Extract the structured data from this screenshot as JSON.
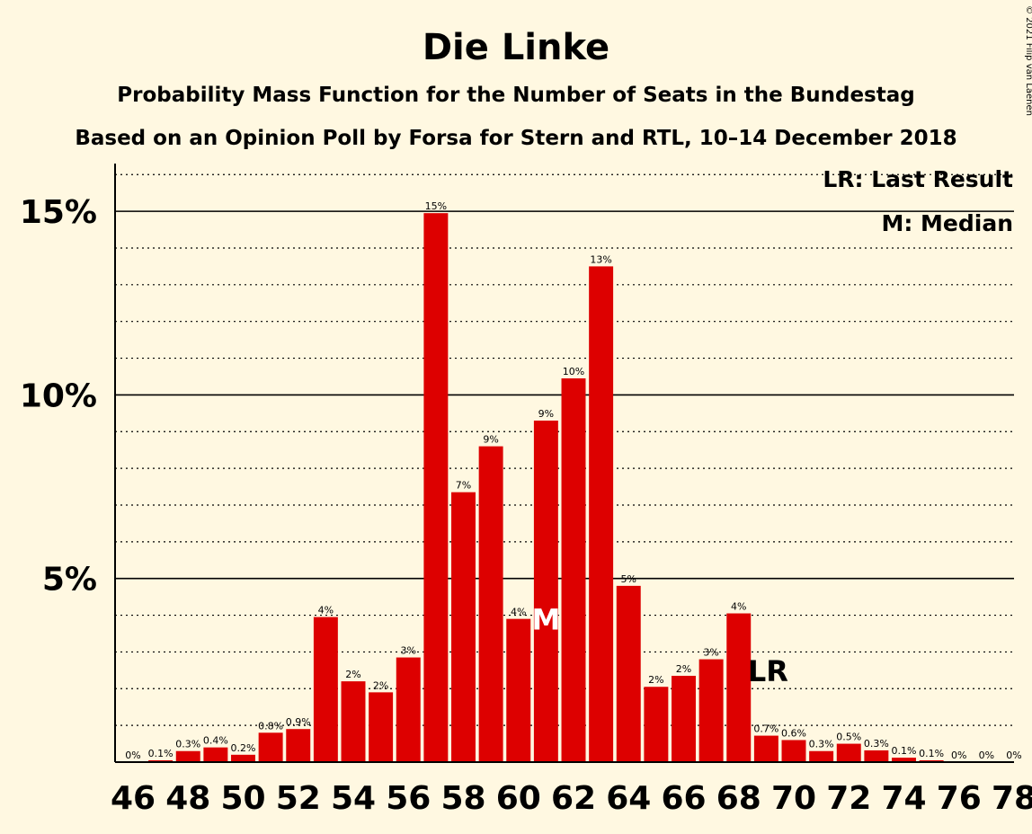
{
  "chart_data": {
    "type": "bar",
    "title": "Die Linke",
    "subtitle": "Probability Mass Function for the Number of Seats in the Bundestag",
    "subtitle2": "Based on an Opinion Poll by Forsa for Stern and RTL, 10–14 December 2018",
    "copyright": "© 2021 Filip van Laenen",
    "legend": {
      "lr": "LR: Last Result",
      "m": "M: Median",
      "placement": "top-right"
    },
    "x": [
      46,
      47,
      48,
      49,
      50,
      51,
      52,
      53,
      54,
      55,
      56,
      57,
      58,
      59,
      60,
      61,
      62,
      63,
      64,
      65,
      66,
      67,
      68,
      69,
      70,
      71,
      72,
      73,
      74,
      75,
      76,
      77,
      78
    ],
    "values": [
      0.0,
      0.05,
      0.3,
      0.4,
      0.2,
      0.8,
      0.9,
      3.95,
      2.2,
      1.9,
      2.85,
      14.95,
      7.35,
      8.6,
      3.9,
      9.3,
      10.45,
      13.5,
      4.8,
      2.05,
      2.35,
      2.8,
      4.05,
      0.72,
      0.6,
      0.3,
      0.5,
      0.32,
      0.12,
      0.05,
      0.0,
      0.0,
      0.0
    ],
    "labels": [
      "0%",
      "0.1%",
      "0.3%",
      "0.4%",
      "0.2%",
      "0.8%",
      "0.9%",
      "4%",
      "2%",
      "2%",
      "3%",
      "15%",
      "7%",
      "9%",
      "4%",
      "9%",
      "10%",
      "13%",
      "5%",
      "2%",
      "2%",
      "3%",
      "4%",
      "0.7%",
      "0.6%",
      "0.3%",
      "0.5%",
      "0.3%",
      "0.1%",
      "0.1%",
      "0%",
      "0%",
      "0%"
    ],
    "x_tick_labels": [
      "46",
      "48",
      "50",
      "52",
      "54",
      "56",
      "58",
      "60",
      "62",
      "64",
      "66",
      "68",
      "70",
      "72",
      "74",
      "76",
      "78"
    ],
    "y_ticks": [
      {
        "value": 5,
        "label": "5%"
      },
      {
        "value": 10,
        "label": "10%"
      },
      {
        "value": 15,
        "label": "15%"
      }
    ],
    "ylim": [
      0,
      16.3
    ],
    "median_seat": 61,
    "median_marker": "M",
    "last_result_seat": 69,
    "last_result_marker": "LR",
    "colors": {
      "bar": "#dd0000",
      "background": "#fff8e1",
      "text": "#111111",
      "median_text": "#ffffff"
    }
  }
}
